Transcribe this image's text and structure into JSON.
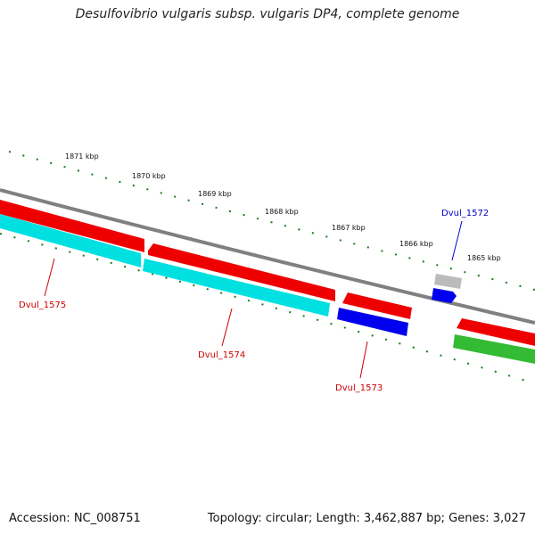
{
  "title": "Desulfovibrio vulgaris subsp. vulgaris DP4, complete genome",
  "footer": {
    "accession": "Accession: NC_008751",
    "summary": "Topology: circular; Length: 3,462,887 bp; Genes: 3,027"
  },
  "scale_labels": [
    "1871 kbp",
    "1870 kbp",
    "1869 kbp",
    "1868 kbp",
    "1867 kbp",
    "1866 kbp",
    "1865 kbp"
  ],
  "genes": [
    {
      "name": "Dvul_1575",
      "color": "#cc0000"
    },
    {
      "name": "Dvul_1574",
      "color": "#cc0000"
    },
    {
      "name": "Dvul_1573",
      "color": "#cc0000"
    },
    {
      "name": "Dvul_1572",
      "color": "#0000cc"
    }
  ],
  "colors": {
    "backbone": "#808080",
    "forward_cds": "#ff0000",
    "reverse_cds": "#00e5e5",
    "blue_feature": "#0000ff",
    "green_feature": "#33bb33",
    "grey_feature": "#bbbbbb",
    "ticks": "#1a7a1a"
  }
}
